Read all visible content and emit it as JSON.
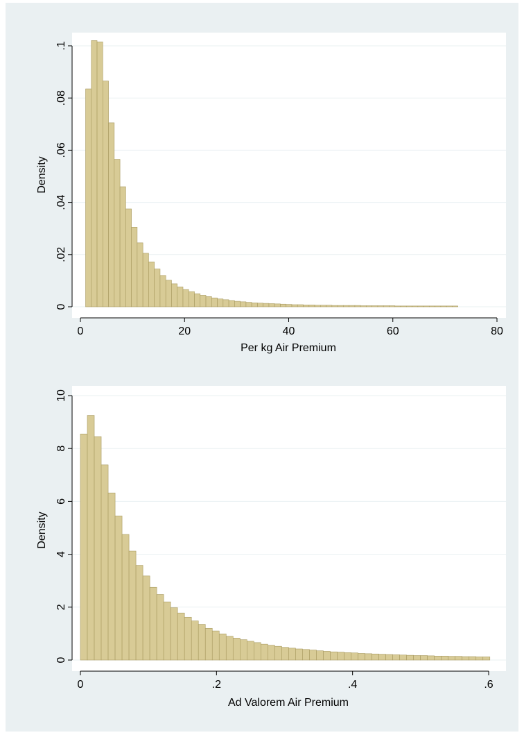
{
  "colors": {
    "figure_background": "#eaf0f2",
    "plot_background": "#ffffff",
    "bar_fill": "#d8cb96",
    "bar_stroke": "#a89a5f",
    "gridline": "#eaf0f2",
    "axis": "#000000"
  },
  "chart_data": [
    {
      "type": "bar",
      "subtype": "histogram",
      "xlabel": "Per kg Air Premium",
      "ylabel": "Density",
      "xlim": [
        0,
        80
      ],
      "ylim": [
        0,
        0.1
      ],
      "x_ticks": [
        0,
        20,
        40,
        60,
        80
      ],
      "x_tick_labels": [
        "0",
        "20",
        "40",
        "60",
        "80"
      ],
      "y_ticks": [
        0,
        0.02,
        0.04,
        0.06,
        0.08,
        0.1
      ],
      "y_tick_labels": [
        "0",
        ".02",
        ".04",
        ".06",
        ".08",
        ".1"
      ],
      "grid": true,
      "bin_width": 1.1,
      "bin_start": 1.0,
      "values": [
        0.0835,
        0.102,
        0.1015,
        0.0865,
        0.0705,
        0.0565,
        0.046,
        0.0375,
        0.0305,
        0.0245,
        0.0205,
        0.0172,
        0.0145,
        0.012,
        0.0102,
        0.0088,
        0.0076,
        0.0066,
        0.0058,
        0.005,
        0.0044,
        0.0039,
        0.0034,
        0.003,
        0.0027,
        0.0024,
        0.0021,
        0.0019,
        0.0017,
        0.0015,
        0.0014,
        0.0013,
        0.0012,
        0.0011,
        0.001,
        0.0009,
        0.0008,
        0.0008,
        0.0007,
        0.0007,
        0.0006,
        0.0006,
        0.0006,
        0.0005,
        0.0005,
        0.0005,
        0.0005,
        0.0005,
        0.0004,
        0.0004,
        0.0004,
        0.0004,
        0.0004,
        0.0004,
        0.0003,
        0.0003,
        0.0003,
        0.0003,
        0.0003,
        0.0003,
        0.0003,
        0.0003,
        0.0003,
        0.0003,
        0.0003
      ]
    },
    {
      "type": "bar",
      "subtype": "histogram",
      "xlabel": "Ad Valorem Air Premium",
      "ylabel": "Density",
      "xlim": [
        0,
        0.6
      ],
      "ylim": [
        0,
        10
      ],
      "x_ticks": [
        0,
        0.2,
        0.4,
        0.6
      ],
      "x_tick_labels": [
        "0",
        ".2",
        ".4",
        ".6"
      ],
      "y_ticks": [
        0,
        2,
        4,
        6,
        8,
        10
      ],
      "y_tick_labels": [
        "0",
        "2",
        "4",
        "6",
        "8",
        "10"
      ],
      "grid": true,
      "bin_width": 0.0102,
      "bin_start": 0.0,
      "values": [
        8.55,
        9.25,
        8.45,
        7.38,
        6.32,
        5.45,
        4.75,
        4.12,
        3.58,
        3.18,
        2.75,
        2.48,
        2.2,
        1.98,
        1.78,
        1.62,
        1.48,
        1.35,
        1.2,
        1.1,
        0.99,
        0.9,
        0.83,
        0.77,
        0.71,
        0.66,
        0.6,
        0.56,
        0.52,
        0.48,
        0.45,
        0.42,
        0.4,
        0.38,
        0.35,
        0.33,
        0.31,
        0.3,
        0.28,
        0.27,
        0.25,
        0.24,
        0.23,
        0.22,
        0.21,
        0.2,
        0.19,
        0.18,
        0.17,
        0.17,
        0.16,
        0.15,
        0.15,
        0.14,
        0.14,
        0.13,
        0.13,
        0.12,
        0.12
      ]
    }
  ]
}
